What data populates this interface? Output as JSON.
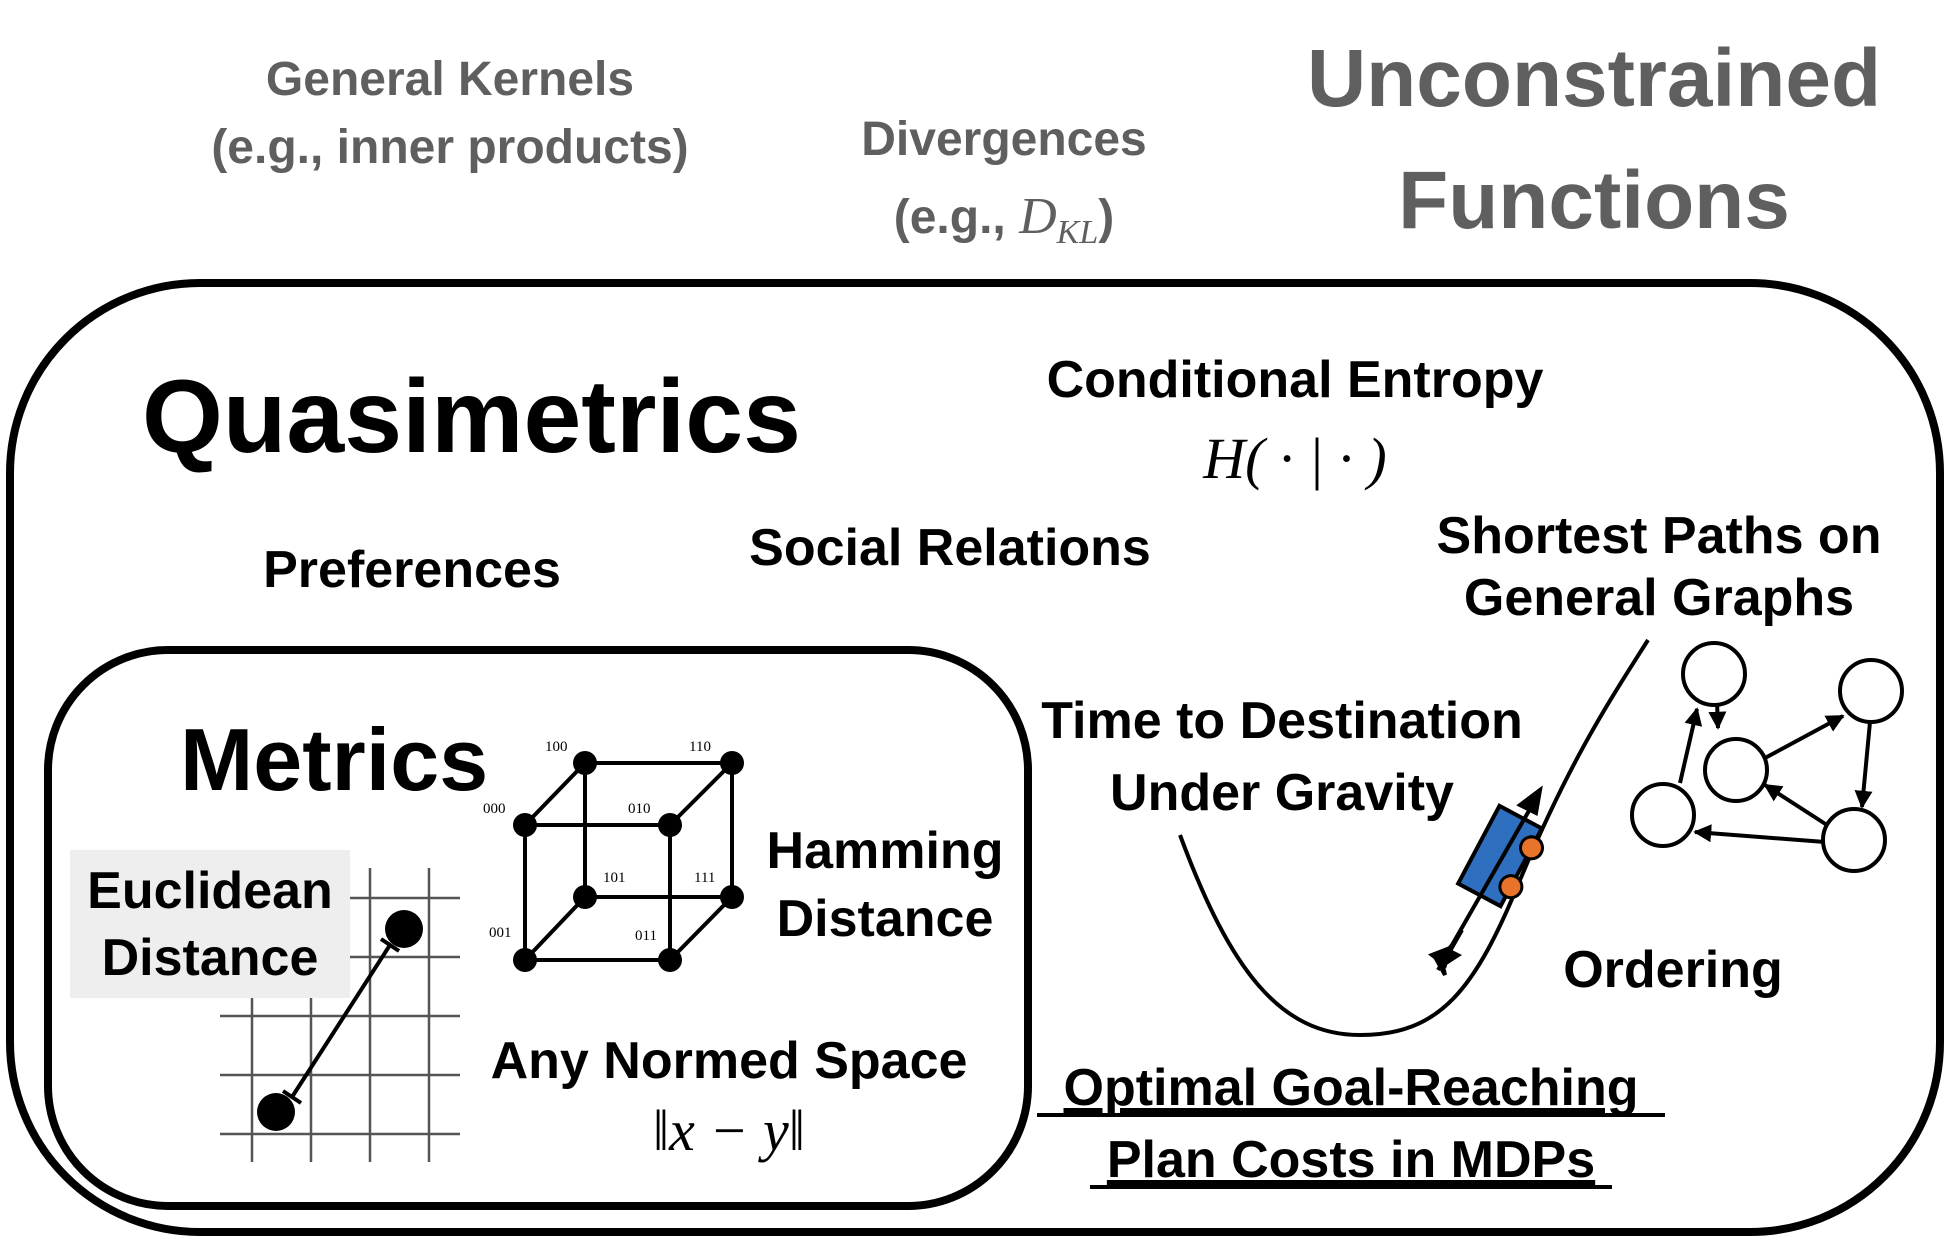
{
  "outer_labels": {
    "general_kernels_line1": "General Kernels",
    "general_kernels_line2": "(e.g., inner products)",
    "divergences_line1": "Divergences",
    "divergences_prefix": "(e.g., ",
    "divergences_symbol": "D",
    "divergences_subscript": "KL",
    "divergences_suffix": ")",
    "unconstrained_line1": "Unconstrained",
    "unconstrained_line2": "Functions"
  },
  "quasimetrics": {
    "title": "Quasimetrics",
    "conditional_entropy": "Conditional Entropy",
    "conditional_entropy_formula": "H( · | · )",
    "preferences": "Preferences",
    "social_relations": "Social Relations",
    "shortest_paths_line1": "Shortest Paths on",
    "shortest_paths_line2": "General Graphs",
    "time_to_destination_line1": "Time to Destination",
    "time_to_destination_line2": "Under Gravity",
    "ordering": "Ordering",
    "optimal_line1": "Optimal Goal-Reaching",
    "optimal_line2": "Plan Costs in MDPs"
  },
  "metrics": {
    "title": "Metrics",
    "euclidean_line1": "Euclidean",
    "euclidean_line2": "Distance",
    "hamming_line1": "Hamming",
    "hamming_line2": "Distance",
    "normed_space": "Any Normed Space",
    "normed_formula": "‖x − y‖",
    "cube_labels": [
      "000",
      "100",
      "110",
      "010",
      "001",
      "101",
      "111",
      "011"
    ]
  },
  "colors": {
    "gray_text": "#5f5f5f",
    "black": "#000000",
    "car_blue": "#2f6fbf",
    "car_wheel": "#e8732a",
    "euclid_bg": "#eeeeee"
  }
}
